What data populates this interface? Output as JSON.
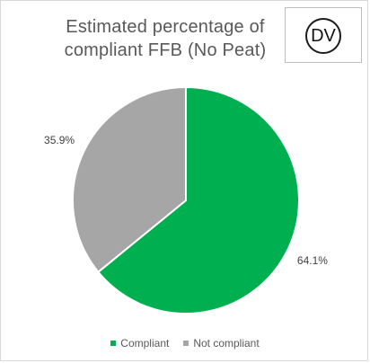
{
  "badge": {
    "text": "DV"
  },
  "chart_data": {
    "type": "pie",
    "title": "Estimated percentage of compliant FFB (No Peat)",
    "categories": [
      "Compliant",
      "Not compliant"
    ],
    "values": [
      64.1,
      35.9
    ],
    "labels": [
      "64.1%",
      "35.9%"
    ],
    "colors": [
      "#00b050",
      "#a6a6a6"
    ],
    "legend": "bottom"
  }
}
